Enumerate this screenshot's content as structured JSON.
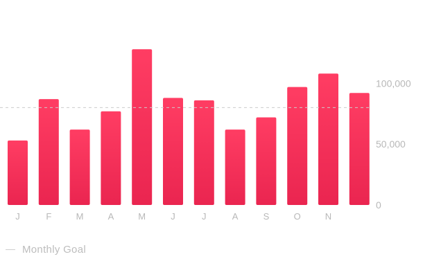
{
  "chart_data": {
    "type": "bar",
    "categories": [
      "J",
      "F",
      "M",
      "A",
      "M",
      "J",
      "J",
      "A",
      "S",
      "O",
      "N",
      ""
    ],
    "values": [
      53000,
      87000,
      62000,
      77000,
      128000,
      88000,
      86000,
      62000,
      72000,
      97000,
      108000,
      92000
    ],
    "goal": 80000,
    "yticks": [
      0,
      50000,
      100000
    ],
    "ytick_labels": [
      "0",
      "50,000",
      "100,000"
    ],
    "ylim": [
      0,
      140000
    ],
    "title": "",
    "xlabel": "",
    "ylabel": "",
    "grid": false,
    "legend": [
      {
        "name": "Monthly Goal",
        "style": "dashed-line"
      }
    ],
    "legend_position": "bottom-left",
    "colors": {
      "bar_top": "#ff3d63",
      "bar_bottom": "#ea2550",
      "goal_line": "#cccccc",
      "labels": "#b8b8b8"
    }
  }
}
